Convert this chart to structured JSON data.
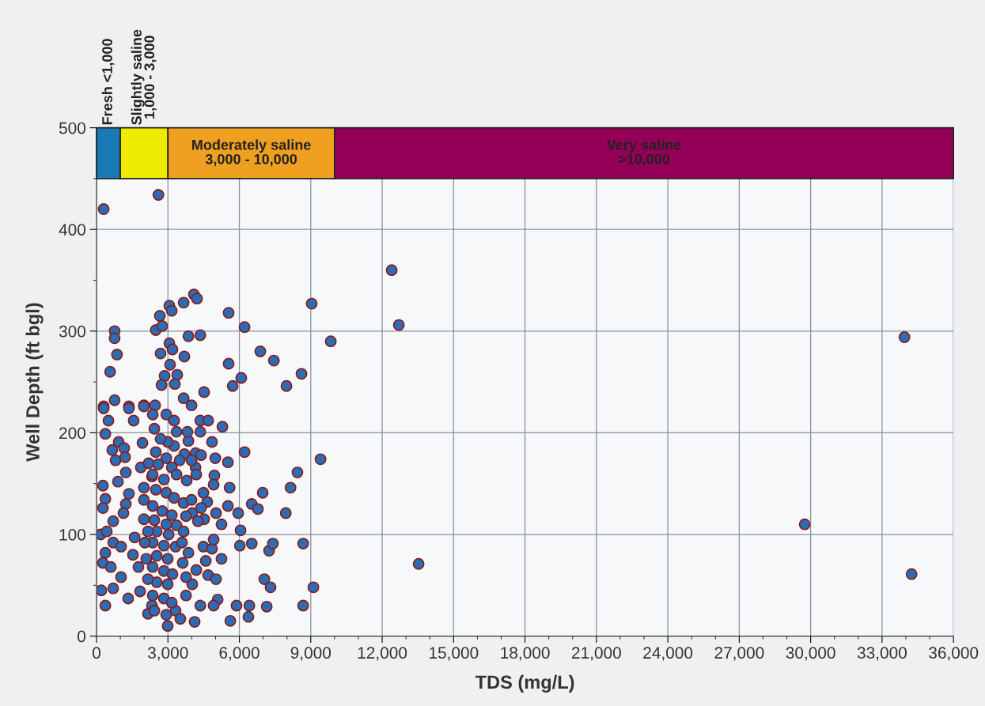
{
  "chart_data": {
    "type": "scatter",
    "xlabel": "TDS (mg/L)",
    "ylabel": "Well Depth (ft bgl)",
    "xlim": [
      0,
      36000
    ],
    "ylim": [
      0,
      500
    ],
    "xticks": [
      0,
      {
        "value": 3000,
        "label": "3,000"
      },
      {
        "value": 6000,
        "label": "6,000"
      },
      {
        "value": 9000,
        "label": "9,000"
      },
      {
        "value": 12000,
        "label": "12,000"
      },
      {
        "value": 15000,
        "label": "15,000"
      },
      {
        "value": 18000,
        "label": "18,000"
      },
      {
        "value": 21000,
        "label": "21,000"
      },
      {
        "value": 24000,
        "label": "24,000"
      },
      {
        "value": 27000,
        "label": "27,000"
      },
      {
        "value": 30000,
        "label": "30,000"
      },
      {
        "value": 33000,
        "label": "33,000"
      },
      {
        "value": 36000,
        "label": "36,000"
      }
    ],
    "yticks": [
      0,
      100,
      200,
      300,
      400,
      500
    ],
    "grid": true,
    "marker": "circle",
    "bands": [
      {
        "axis": "x",
        "from": 0,
        "to": 1000,
        "label": "Fresh <1,000",
        "color": "#1a7ab5"
      },
      {
        "axis": "x",
        "from": 1000,
        "to": 3000,
        "label": "Slightly saline\n1,000 - 3,000",
        "color": "#eeea00"
      },
      {
        "axis": "x",
        "from": 3000,
        "to": 10000,
        "label": "Moderately saline\n3,000 - 10,000",
        "color": "#f0a020"
      },
      {
        "axis": "x",
        "from": 10000,
        "to": 36000,
        "label": "Very saline\n>10,000",
        "color": "#940058"
      }
    ],
    "series": [
      {
        "color": "#2a6db5",
        "x": [
          300,
          2600,
          12400,
          12700,
          33940,
          29750,
          34240,
          13530,
          9840,
          9040,
          9410,
          9110,
          5550,
          6220,
          6880,
          7450,
          8610,
          7980,
          5550,
          5720,
          6080,
          4520,
          4090,
          4220,
          3660,
          3060,
          3160,
          2660,
          2490,
          2760,
          3860,
          4360,
          3060,
          3190,
          2690,
          3690,
          3090,
          2860,
          3390,
          2730,
          3290,
          760,
          760,
          860,
          570,
          760,
          300,
          1360,
          1990,
          2460,
          3660,
          3990,
          300,
          1360,
          1990,
          500,
          1560,
          370,
          4360,
          4690,
          5290,
          4360,
          4850,
          3860,
          930,
          660,
          1160,
          1930,
          800,
          1200,
          6220,
          4990,
          5520,
          4160,
          4390,
          8440,
          8150,
          7950,
          6980,
          6520,
          6780,
          1230,
          1860,
          900,
          270,
          1360,
          1230,
          370,
          270,
          1130,
          700,
          170,
          430,
          700,
          1030,
          370,
          270,
          600,
          1030,
          200,
          700,
          370,
          1330,
          1830,
          1760,
          1530,
          1600,
          1990,
          1990,
          2190,
          2330,
          3360,
          3820,
          3260,
          3690,
          2990,
          5590,
          4950,
          4920,
          3790,
          4160,
          4650,
          4390,
          5020,
          5520,
          5950,
          6050,
          6020,
          6520,
          7250,
          7410,
          8680,
          4490,
          4850,
          5250,
          4920,
          5250,
          4520,
          3660,
          4020,
          4260,
          4590,
          4190,
          4690,
          5020,
          4020,
          3760,
          5090,
          4920,
          4360,
          4120,
          5620,
          5880,
          6420,
          6380,
          7150,
          7050,
          7310,
          8680,
          3620,
          3760,
          2990,
          2160,
          2330,
          3320,
          3520,
          2360,
          2930,
          3260,
          2430,
          2690,
          2490,
          2930,
          2590,
          3160,
          2360,
          2830,
          3360,
          2490,
          2930,
          3260,
          2360,
          2760,
          3160,
          2430,
          2930,
          3360,
          2530,
          3030,
          2360,
          2830,
          3320,
          2530,
          2990,
          2360,
          2830,
          3190,
          2530,
          2990,
          2360,
          2830,
          3160,
          2430,
          2930,
          2160,
          2090,
          2160,
          1990,
          2030,
          3660,
          3760,
          3990,
          3590,
          3860,
          3490,
          3990,
          4190,
          4490
        ],
        "values": [
          420,
          434,
          360,
          306,
          294,
          110,
          61,
          71,
          290,
          327,
          174,
          48,
          318,
          304,
          280,
          271,
          258,
          246,
          268,
          246,
          254,
          240,
          336,
          332,
          328,
          325,
          320,
          315,
          301,
          305,
          295,
          296,
          288,
          282,
          278,
          275,
          267,
          256,
          257,
          247,
          248,
          300,
          293,
          277,
          260,
          232,
          226,
          226,
          227,
          227,
          234,
          227,
          224,
          224,
          226,
          212,
          212,
          199,
          212,
          212,
          206,
          201,
          191,
          192,
          191,
          183,
          185,
          190,
          173,
          176,
          181,
          175,
          171,
          180,
          178,
          161,
          146,
          121,
          141,
          130,
          125,
          161,
          166,
          152,
          148,
          140,
          130,
          135,
          126,
          121,
          113,
          100,
          103,
          92,
          88,
          82,
          72,
          68,
          58,
          45,
          47,
          30,
          37,
          44,
          68,
          80,
          97,
          134,
          146,
          170,
          157,
          201,
          201,
          187,
          179,
          191,
          146,
          158,
          149,
          153,
          166,
          132,
          126,
          121,
          128,
          121,
          104,
          89,
          91,
          84,
          91,
          91,
          88,
          86,
          76,
          95,
          110,
          115,
          131,
          121,
          113,
          74,
          65,
          60,
          56,
          51,
          58,
          36,
          30,
          30,
          14,
          15,
          30,
          30,
          19,
          29,
          56,
          48,
          30,
          72,
          40,
          10,
          22,
          30,
          25,
          17,
          218,
          218,
          212,
          204,
          194,
          181,
          175,
          169,
          166,
          159,
          154,
          159,
          144,
          141,
          136,
          128,
          123,
          119,
          114,
          110,
          109,
          103,
          100,
          92,
          89,
          88,
          79,
          76,
          68,
          64,
          61,
          53,
          51,
          40,
          37,
          33,
          25,
          21,
          56,
          76,
          103,
          115,
          92,
          103,
          118,
          134,
          92,
          82,
          173,
          173,
          159,
          141
        ]
      }
    ]
  }
}
